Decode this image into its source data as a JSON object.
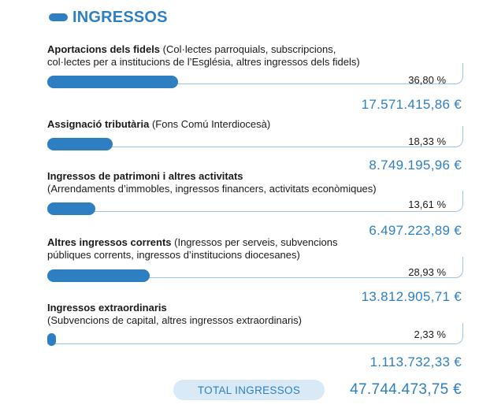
{
  "header": {
    "title": "INGRESSOS"
  },
  "items": [
    {
      "title": "Aportacions dels fidels",
      "description_line1": "(Col·lectes parroquials, subscripcions,",
      "description_line2": "col·lectes per a institucions de l’Església, altres ingressos dels fidels)",
      "share": 0.368,
      "percent_label": "36,80 %",
      "amount": "17.571.415,86 €"
    },
    {
      "title": "Assignació tributària",
      "description_line1": "(Fons Comú Interdiocesà)",
      "description_line2": "",
      "share": 0.1833,
      "percent_label": "18,33 %",
      "amount": "8.749.195,96 €"
    },
    {
      "title": "Ingressos de patrimoni i altres activitats",
      "description_line1": "",
      "description_line2": "(Arrendaments d’immobles, ingressos financers, activitats econòmiques)",
      "share": 0.1361,
      "percent_label": "13,61 %",
      "amount": "6.497.223,89 €"
    },
    {
      "title": "Altres ingressos corrents",
      "description_line1": "(Ingressos per serveis, subvencions",
      "description_line2": "públiques corrents, ingressos d’institucions diocesanes)",
      "share": 0.2893,
      "percent_label": "28,93 %",
      "amount": "13.812.905,71 €"
    },
    {
      "title": "Ingressos extraordinaris",
      "description_line1": "",
      "description_line2": "(Subvencions de capital, altres ingressos extraordinaris)",
      "share": 0.0233,
      "percent_label": "2,33 %",
      "amount": "1.113.732,33 €"
    }
  ],
  "total": {
    "label": "TOTAL INGRESSOS",
    "amount": "47.744.473,75 €"
  },
  "colors": {
    "accent": "#2e7fc1",
    "frame": "#9ec4e4",
    "pill": "#d9e9f6"
  }
}
